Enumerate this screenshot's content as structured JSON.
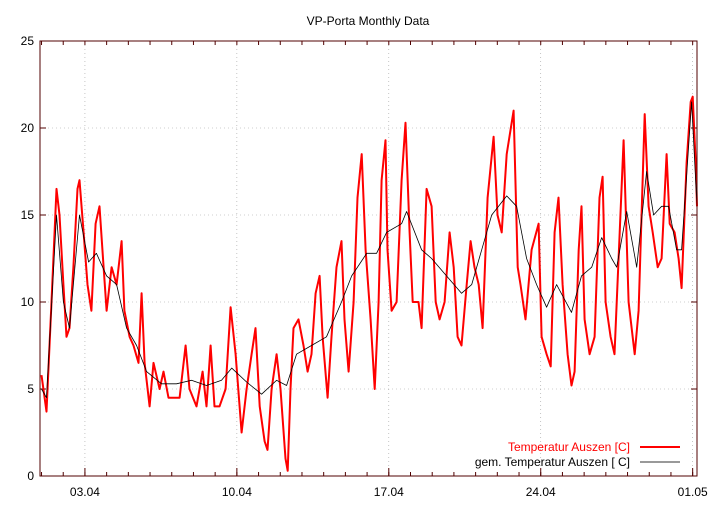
{
  "chart_data": {
    "type": "line",
    "title": "VP-Porta Monthly Data",
    "xlabel": "",
    "ylabel": "",
    "xlim": [
      0.93,
      31.2
    ],
    "ylim": [
      0,
      25
    ],
    "grid": true,
    "legend_position": "bottom-right",
    "x_unit": "day of April (01.05 = 31)",
    "yticks": [
      0,
      5,
      10,
      15,
      20,
      25
    ],
    "xticks": [
      {
        "value": 3,
        "label": "03.04"
      },
      {
        "value": 10,
        "label": "10.04"
      },
      {
        "value": 17,
        "label": "17.04"
      },
      {
        "value": 24,
        "label": "24.04"
      },
      {
        "value": 31,
        "label": "01.05"
      }
    ],
    "series": [
      {
        "name": "Temperatur Auszen [C]",
        "color": "#ff0000",
        "points": [
          [
            1.0,
            5.8
          ],
          [
            1.23,
            3.7
          ],
          [
            1.46,
            10
          ],
          [
            1.69,
            16.5
          ],
          [
            1.83,
            15
          ],
          [
            2.01,
            11
          ],
          [
            2.15,
            8
          ],
          [
            2.29,
            8.5
          ],
          [
            2.47,
            12
          ],
          [
            2.66,
            16.5
          ],
          [
            2.75,
            17
          ],
          [
            2.94,
            14
          ],
          [
            3.12,
            11
          ],
          [
            3.3,
            9.5
          ],
          [
            3.49,
            14.5
          ],
          [
            3.67,
            15.5
          ],
          [
            3.86,
            12
          ],
          [
            4.0,
            9.5
          ],
          [
            4.23,
            12
          ],
          [
            4.46,
            11
          ],
          [
            4.69,
            13.5
          ],
          [
            4.82,
            9.5
          ],
          [
            5.06,
            8
          ],
          [
            5.24,
            7.5
          ],
          [
            5.47,
            6.5
          ],
          [
            5.61,
            10.5
          ],
          [
            5.75,
            6.5
          ],
          [
            5.98,
            4
          ],
          [
            6.16,
            6.5
          ],
          [
            6.44,
            5
          ],
          [
            6.62,
            6
          ],
          [
            6.85,
            4.5
          ],
          [
            7.08,
            4.5
          ],
          [
            7.36,
            4.5
          ],
          [
            7.64,
            7.5
          ],
          [
            7.82,
            5
          ],
          [
            8.14,
            4
          ],
          [
            8.42,
            6
          ],
          [
            8.6,
            4
          ],
          [
            8.79,
            7.5
          ],
          [
            8.97,
            4
          ],
          [
            9.2,
            4
          ],
          [
            9.48,
            5
          ],
          [
            9.71,
            9.7
          ],
          [
            9.94,
            7
          ],
          [
            10.22,
            2.5
          ],
          [
            10.45,
            5
          ],
          [
            10.68,
            7
          ],
          [
            10.86,
            8.5
          ],
          [
            11.05,
            4
          ],
          [
            11.28,
            2
          ],
          [
            11.41,
            1.5
          ],
          [
            11.6,
            5
          ],
          [
            11.83,
            7
          ],
          [
            12.01,
            5
          ],
          [
            12.24,
            1
          ],
          [
            12.34,
            0.3
          ],
          [
            12.47,
            5
          ],
          [
            12.61,
            8.5
          ],
          [
            12.84,
            9
          ],
          [
            13.07,
            7.5
          ],
          [
            13.26,
            6
          ],
          [
            13.44,
            7
          ],
          [
            13.63,
            10.5
          ],
          [
            13.81,
            11.5
          ],
          [
            13.95,
            8
          ],
          [
            14.18,
            4.5
          ],
          [
            14.36,
            8
          ],
          [
            14.59,
            12
          ],
          [
            14.82,
            13.5
          ],
          [
            14.96,
            9
          ],
          [
            15.15,
            6
          ],
          [
            15.38,
            10
          ],
          [
            15.56,
            16
          ],
          [
            15.75,
            18.5
          ],
          [
            15.93,
            13
          ],
          [
            16.16,
            9
          ],
          [
            16.35,
            5
          ],
          [
            16.53,
            10
          ],
          [
            16.67,
            17
          ],
          [
            16.85,
            19.3
          ],
          [
            16.94,
            13
          ],
          [
            17.13,
            9.5
          ],
          [
            17.36,
            10
          ],
          [
            17.59,
            17
          ],
          [
            17.77,
            20.3
          ],
          [
            17.96,
            14
          ],
          [
            18.1,
            10
          ],
          [
            18.37,
            10
          ],
          [
            18.51,
            8.5
          ],
          [
            18.74,
            16.5
          ],
          [
            18.97,
            15.5
          ],
          [
            19.16,
            10
          ],
          [
            19.34,
            9
          ],
          [
            19.57,
            10
          ],
          [
            19.8,
            14
          ],
          [
            19.99,
            12
          ],
          [
            20.17,
            8
          ],
          [
            20.35,
            7.5
          ],
          [
            20.59,
            11
          ],
          [
            20.77,
            13.5
          ],
          [
            20.95,
            12
          ],
          [
            21.14,
            11
          ],
          [
            21.32,
            8.5
          ],
          [
            21.55,
            16
          ],
          [
            21.83,
            19.5
          ],
          [
            22.01,
            15
          ],
          [
            22.2,
            14
          ],
          [
            22.43,
            18.5
          ],
          [
            22.75,
            21
          ],
          [
            22.94,
            12
          ],
          [
            23.07,
            11
          ],
          [
            23.3,
            9
          ],
          [
            23.58,
            13
          ],
          [
            23.9,
            14.5
          ],
          [
            24.04,
            8
          ],
          [
            24.27,
            7
          ],
          [
            24.46,
            6.3
          ],
          [
            24.64,
            14
          ],
          [
            24.82,
            16
          ],
          [
            25.01,
            11
          ],
          [
            25.24,
            7
          ],
          [
            25.42,
            5.2
          ],
          [
            25.56,
            6
          ],
          [
            25.75,
            13
          ],
          [
            25.88,
            15.5
          ],
          [
            26.02,
            9
          ],
          [
            26.25,
            7
          ],
          [
            26.48,
            8
          ],
          [
            26.71,
            16
          ],
          [
            26.85,
            17.2
          ],
          [
            26.99,
            10
          ],
          [
            27.22,
            8
          ],
          [
            27.4,
            7
          ],
          [
            27.64,
            14
          ],
          [
            27.82,
            19.3
          ],
          [
            28.05,
            10
          ],
          [
            28.33,
            7
          ],
          [
            28.51,
            9.5
          ],
          [
            28.79,
            20.8
          ],
          [
            28.97,
            15.5
          ],
          [
            29.16,
            14
          ],
          [
            29.39,
            12
          ],
          [
            29.57,
            12.5
          ],
          [
            29.8,
            18.5
          ],
          [
            29.94,
            14.5
          ],
          [
            30.17,
            14
          ],
          [
            30.35,
            12.5
          ],
          [
            30.49,
            10.8
          ],
          [
            30.72,
            18
          ],
          [
            30.91,
            21.5
          ],
          [
            31.0,
            21.8
          ],
          [
            31.14,
            18
          ],
          [
            31.2,
            15.5
          ]
        ]
      },
      {
        "name": "gem. Temperatur Auszen [ C]",
        "color": "#000000",
        "points": [
          [
            1.0,
            5
          ],
          [
            1.23,
            4.5
          ],
          [
            1.69,
            15
          ],
          [
            2.01,
            10
          ],
          [
            2.29,
            8.5
          ],
          [
            2.75,
            15
          ],
          [
            3.17,
            12.3
          ],
          [
            3.53,
            12.8
          ],
          [
            4.0,
            11.5
          ],
          [
            4.46,
            11
          ],
          [
            4.92,
            8.5
          ],
          [
            5.38,
            7.5
          ],
          [
            5.84,
            6
          ],
          [
            6.53,
            5.3
          ],
          [
            7.22,
            5.3
          ],
          [
            7.91,
            5.5
          ],
          [
            8.6,
            5.2
          ],
          [
            9.29,
            5.5
          ],
          [
            9.76,
            6.2
          ],
          [
            10.45,
            5.4
          ],
          [
            11.14,
            4.7
          ],
          [
            11.83,
            5.5
          ],
          [
            12.29,
            5.2
          ],
          [
            12.75,
            7
          ],
          [
            13.44,
            7.5
          ],
          [
            14.13,
            8
          ],
          [
            14.82,
            10
          ],
          [
            15.29,
            11.5
          ],
          [
            15.98,
            12.8
          ],
          [
            16.44,
            12.8
          ],
          [
            16.9,
            14
          ],
          [
            17.59,
            14.5
          ],
          [
            17.82,
            15.2
          ],
          [
            18.51,
            13
          ],
          [
            18.97,
            12.5
          ],
          [
            19.66,
            11.5
          ],
          [
            20.35,
            10.5
          ],
          [
            20.82,
            11
          ],
          [
            21.28,
            13
          ],
          [
            21.74,
            15
          ],
          [
            22.43,
            16.1
          ],
          [
            22.89,
            15.5
          ],
          [
            23.35,
            12.5
          ],
          [
            23.81,
            11
          ],
          [
            24.27,
            9.7
          ],
          [
            24.73,
            11
          ],
          [
            25.42,
            9.4
          ],
          [
            25.88,
            11.5
          ],
          [
            26.35,
            12
          ],
          [
            26.81,
            13.7
          ],
          [
            27.27,
            12.5
          ],
          [
            27.5,
            12
          ],
          [
            27.96,
            15.2
          ],
          [
            28.28,
            13
          ],
          [
            28.42,
            12
          ],
          [
            28.88,
            17.5
          ],
          [
            29.2,
            15
          ],
          [
            29.57,
            15.5
          ],
          [
            29.89,
            15.5
          ],
          [
            30.26,
            13
          ],
          [
            30.49,
            13
          ],
          [
            30.95,
            21.5
          ],
          [
            31.2,
            15.5
          ]
        ]
      }
    ]
  }
}
